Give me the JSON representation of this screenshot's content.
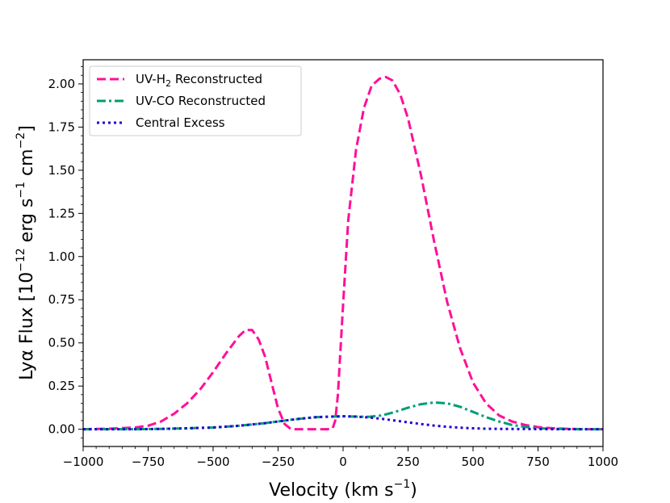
{
  "chart_data": {
    "type": "line",
    "title": "",
    "xlabel": "Velocity (km s",
    "xlabel_sup": "−1",
    "xlabel_tail": ")",
    "ylabel": "Lyα Flux [10",
    "ylabel_sup1": "−12",
    "ylabel_mid": " erg s",
    "ylabel_sup2": "−1",
    "ylabel_mid2": " cm",
    "ylabel_sup3": "−2",
    "ylabel_tail": "]",
    "xlim": [
      -1000,
      1000
    ],
    "ylim": [
      -0.1,
      2.14
    ],
    "xticks": [
      -1000,
      -750,
      -500,
      -250,
      0,
      250,
      500,
      750,
      1000
    ],
    "xtick_labels": [
      "−1000",
      "−750",
      "−500",
      "−250",
      "0",
      "250",
      "500",
      "750",
      "1000"
    ],
    "yticks": [
      0.0,
      0.25,
      0.5,
      0.75,
      1.0,
      1.25,
      1.5,
      1.75,
      2.0
    ],
    "ytick_labels": [
      "0.00",
      "0.25",
      "0.50",
      "0.75",
      "1.00",
      "1.25",
      "1.50",
      "1.75",
      "2.00"
    ],
    "legend_position": "top-left",
    "series": [
      {
        "name": "UV-H₂ Reconstructed",
        "legend_label": "UV-H",
        "legend_sub": "2",
        "legend_tail": " Reconstructed",
        "color": "#ff0f99",
        "dash": "dashed",
        "x": [
          -1000,
          -900,
          -800,
          -750,
          -700,
          -650,
          -600,
          -550,
          -500,
          -450,
          -400,
          -375,
          -350,
          -325,
          -300,
          -275,
          -250,
          -225,
          -200,
          -150,
          -100,
          -60,
          -40,
          -30,
          -20,
          0,
          20,
          50,
          80,
          110,
          140,
          165,
          190,
          220,
          250,
          300,
          350,
          400,
          450,
          500,
          550,
          600,
          650,
          700,
          750,
          800,
          850,
          900,
          950,
          1000
        ],
        "y": [
          0.0,
          0.003,
          0.01,
          0.02,
          0.045,
          0.09,
          0.15,
          0.23,
          0.33,
          0.44,
          0.54,
          0.575,
          0.575,
          0.52,
          0.42,
          0.27,
          0.12,
          0.03,
          0.0,
          0.0,
          0.0,
          0.0,
          0.005,
          0.05,
          0.2,
          0.72,
          1.21,
          1.62,
          1.86,
          1.99,
          2.03,
          2.04,
          2.02,
          1.94,
          1.8,
          1.47,
          1.09,
          0.74,
          0.47,
          0.27,
          0.15,
          0.08,
          0.045,
          0.025,
          0.012,
          0.006,
          0.003,
          0.001,
          0.0,
          0.0
        ]
      },
      {
        "name": "UV-CO Reconstructed",
        "legend_label": "UV-CO Reconstructed",
        "color": "#009e73",
        "dash": "dashdot",
        "x": [
          -1000,
          -900,
          -800,
          -700,
          -600,
          -500,
          -400,
          -300,
          -250,
          -200,
          -150,
          -100,
          -50,
          0,
          50,
          100,
          150,
          200,
          250,
          300,
          350,
          400,
          450,
          500,
          550,
          600,
          650,
          700,
          750,
          800,
          900,
          1000
        ],
        "y": [
          0.0,
          0.0,
          0.0,
          0.002,
          0.005,
          0.01,
          0.02,
          0.035,
          0.045,
          0.055,
          0.063,
          0.07,
          0.073,
          0.075,
          0.073,
          0.072,
          0.08,
          0.1,
          0.125,
          0.145,
          0.155,
          0.15,
          0.13,
          0.1,
          0.07,
          0.045,
          0.025,
          0.013,
          0.006,
          0.003,
          0.0,
          0.0
        ]
      },
      {
        "name": "Central Excess",
        "legend_label": "Central Excess",
        "color": "#1f00d6",
        "dash": "dotted",
        "x": [
          -1000,
          -900,
          -800,
          -700,
          -600,
          -500,
          -400,
          -300,
          -250,
          -200,
          -150,
          -100,
          -50,
          0,
          50,
          100,
          150,
          200,
          250,
          300,
          350,
          400,
          450,
          500,
          550,
          600,
          700,
          800,
          900,
          1000
        ],
        "y": [
          0.0,
          0.0,
          0.0,
          0.002,
          0.005,
          0.01,
          0.02,
          0.035,
          0.045,
          0.055,
          0.063,
          0.07,
          0.073,
          0.075,
          0.073,
          0.068,
          0.06,
          0.05,
          0.04,
          0.03,
          0.021,
          0.014,
          0.009,
          0.005,
          0.003,
          0.002,
          0.001,
          0.0,
          0.0,
          0.0
        ]
      }
    ]
  }
}
